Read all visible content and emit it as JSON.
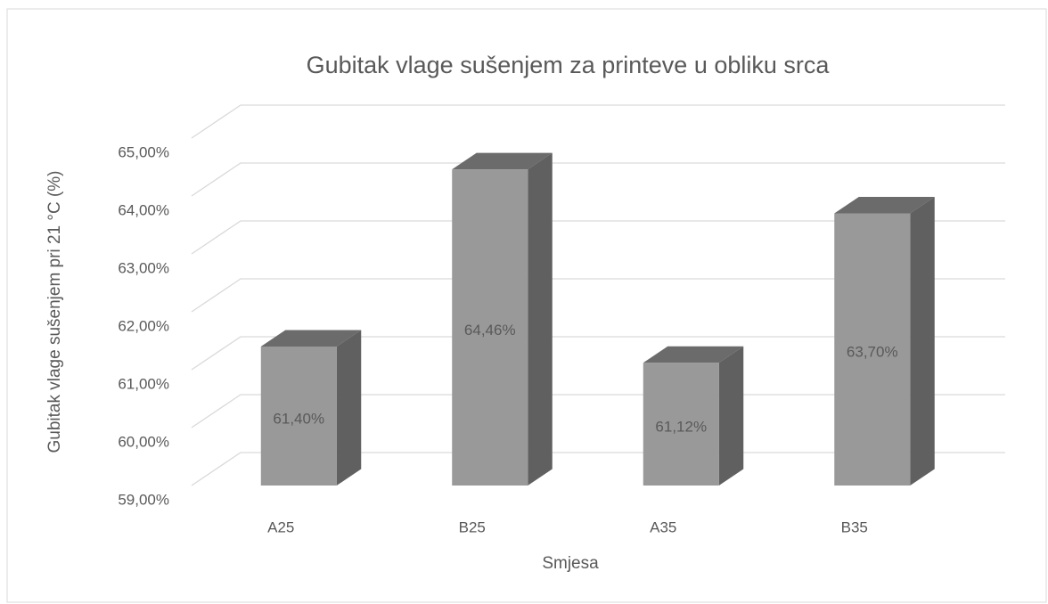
{
  "chart_data": {
    "type": "bar3d",
    "title": "Gubitak vlage sušenjem  za printeve u obliku srca",
    "x_label": "Smjesa",
    "y_label": "Gubitak vlage sušenjem pri 21 °C (%)",
    "categories": [
      "A25",
      "B25",
      "A35",
      "B35"
    ],
    "values": [
      61.4,
      64.46,
      61.12,
      63.7
    ],
    "value_labels": [
      "61,40%",
      "64,46%",
      "61,12%",
      "63,70%"
    ],
    "color": "#999999",
    "ylim": [
      59,
      65
    ],
    "yticks": [
      {
        "value": 59,
        "label": "59,00%"
      },
      {
        "value": 60,
        "label": "60,00%"
      },
      {
        "value": 61,
        "label": "61,00%"
      },
      {
        "value": 62,
        "label": "62,00%"
      },
      {
        "value": 63,
        "label": "63,00%"
      },
      {
        "value": 64,
        "label": "64,00%"
      },
      {
        "value": 65,
        "label": "65,00%"
      }
    ],
    "grid": true
  }
}
